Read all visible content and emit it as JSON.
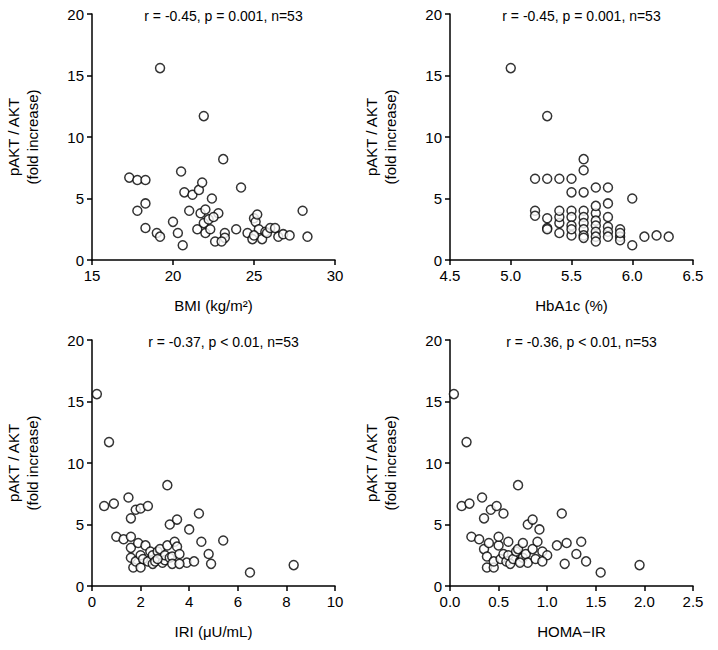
{
  "chart_data": [
    {
      "type": "scatter",
      "annotation": "r = -0.45, p = 0.001, n=53",
      "x_label": "BMI (kg/m²)",
      "y_label": "pAKT / AKT\n(fold increase)",
      "color": "#000000",
      "marker": "open_circle",
      "xlim": [
        15,
        30
      ],
      "xticks": [
        15,
        20,
        25,
        30
      ],
      "ylim": [
        0,
        20
      ],
      "yticks": [
        0,
        5,
        10,
        15,
        20
      ],
      "x": [
        17.3,
        17.8,
        18.3,
        17.8,
        18.3,
        18.3,
        19.2,
        19.0,
        19.2,
        20.0,
        20.3,
        20.5,
        20.6,
        20.7,
        21.0,
        21.2,
        21.5,
        21.6,
        21.8,
        21.9,
        21.7,
        21.9,
        22.0,
        22.0,
        22.2,
        22.3,
        22.6,
        22.8,
        22.4,
        22.5,
        23.1,
        23.2,
        23.2,
        23.0,
        23.9,
        24.2,
        24.6,
        24.9,
        25.0,
        25.1,
        25.2,
        25.3,
        25.5,
        25.7,
        25.8,
        26.0,
        26.3,
        26.5,
        26.8,
        27.2,
        28.0,
        28.3,
        25.0
      ],
      "values": [
        6.7,
        6.5,
        6.5,
        4.0,
        4.6,
        2.6,
        15.6,
        2.2,
        1.9,
        3.1,
        2.2,
        7.2,
        1.2,
        5.5,
        4.0,
        5.3,
        2.5,
        5.7,
        6.3,
        11.7,
        3.8,
        3.0,
        4.1,
        2.2,
        3.3,
        2.5,
        1.5,
        3.8,
        5.0,
        3.5,
        8.2,
        2.2,
        1.8,
        1.5,
        2.5,
        5.9,
        2.2,
        1.7,
        3.4,
        3.1,
        3.7,
        2.5,
        1.7,
        2.3,
        2.2,
        2.6,
        2.6,
        1.9,
        2.1,
        2.0,
        4.0,
        1.9,
        2.0
      ]
    },
    {
      "type": "scatter",
      "annotation": "r = -0.45, p = 0.001, n=53",
      "x_label": "HbA1c (%)",
      "y_label": "pAKT / AKT\n(fold increase)",
      "color": "#000000",
      "marker": "open_circle",
      "xlim": [
        4.5,
        6.5
      ],
      "xticks": [
        4.5,
        {
          "value": 5,
          "label": "5.0"
        },
        5.5,
        {
          "value": 6,
          "label": "6.0"
        },
        6.5
      ],
      "ylim": [
        0,
        20
      ],
      "yticks": [
        0,
        5,
        10,
        15,
        20
      ],
      "x": [
        5.0,
        5.3,
        5.2,
        5.3,
        5.4,
        5.5,
        5.2,
        5.2,
        5.3,
        5.3,
        5.4,
        5.4,
        5.4,
        5.5,
        5.5,
        5.5,
        5.5,
        5.5,
        5.6,
        5.6,
        5.6,
        5.6,
        5.6,
        5.6,
        5.6,
        5.6,
        5.6,
        5.7,
        5.7,
        5.7,
        5.7,
        5.7,
        5.7,
        5.7,
        5.8,
        5.8,
        5.8,
        5.8,
        5.8,
        5.8,
        5.9,
        5.9,
        5.9,
        6.0,
        6.0,
        6.1,
        6.2,
        6.3,
        5.4,
        5.3,
        5.5,
        5.7,
        5.9
      ],
      "values": [
        15.6,
        11.7,
        6.6,
        6.6,
        6.6,
        6.6,
        4.0,
        3.6,
        2.6,
        2.5,
        3.0,
        3.5,
        2.2,
        5.5,
        4.0,
        3.5,
        2.0,
        2.8,
        8.2,
        7.3,
        5.5,
        4.0,
        3.5,
        3.0,
        2.5,
        2.0,
        1.8,
        5.9,
        3.8,
        3.2,
        2.8,
        2.3,
        1.9,
        1.5,
        5.9,
        4.6,
        3.5,
        2.7,
        2.3,
        1.9,
        2.5,
        1.9,
        1.6,
        5.0,
        1.2,
        1.9,
        2.0,
        1.9,
        4.0,
        3.4,
        2.5,
        4.4,
        2.2
      ]
    },
    {
      "type": "scatter",
      "annotation": "r = -0.37, p < 0.01, n=53",
      "x_label": "IRI (μU/mL)",
      "y_label": "pAKT / AKT\n(fold increase)",
      "color": "#000000",
      "marker": "open_circle",
      "xlim": [
        0,
        10
      ],
      "xticks": [
        0,
        2,
        4,
        6,
        8,
        10
      ],
      "ylim": [
        0,
        20
      ],
      "yticks": [
        0,
        5,
        10,
        15,
        20
      ],
      "x": [
        0.2,
        0.7,
        0.5,
        0.9,
        1.0,
        1.3,
        1.5,
        1.6,
        1.6,
        1.6,
        1.6,
        1.7,
        1.8,
        1.8,
        1.9,
        2.0,
        2.0,
        2.0,
        2.1,
        2.2,
        2.3,
        2.3,
        2.4,
        2.5,
        2.5,
        2.6,
        2.7,
        2.8,
        2.9,
        3.0,
        3.0,
        3.1,
        3.1,
        3.2,
        3.2,
        3.3,
        3.3,
        3.4,
        3.5,
        3.5,
        3.6,
        3.9,
        4.0,
        4.2,
        4.4,
        4.5,
        4.8,
        4.9,
        5.4,
        6.5,
        8.3,
        2.7,
        3.6
      ],
      "values": [
        15.6,
        11.7,
        6.5,
        6.7,
        4.0,
        3.8,
        7.2,
        5.5,
        4.0,
        3.1,
        2.3,
        1.5,
        6.2,
        2.0,
        3.5,
        6.3,
        2.5,
        1.5,
        2.2,
        3.3,
        6.5,
        2.0,
        2.8,
        2.5,
        1.8,
        2.0,
        2.8,
        3.0,
        1.9,
        2.1,
        2.5,
        8.2,
        3.3,
        5.0,
        2.3,
        2.4,
        1.8,
        3.6,
        5.4,
        3.2,
        2.6,
        1.9,
        4.6,
        2.0,
        5.9,
        3.6,
        2.6,
        1.8,
        3.7,
        1.1,
        1.7,
        2.2,
        1.8
      ]
    },
    {
      "type": "scatter",
      "annotation": "r = -0.36, p < 0.01, n=53",
      "x_label": "HOMA−IR",
      "y_label": "pAKT / AKT\n(fold increase)",
      "color": "#000000",
      "marker": "open_circle",
      "xlim": [
        0,
        2.5
      ],
      "xticks": [
        {
          "value": 0,
          "label": "0.0"
        },
        0.5,
        {
          "value": 1,
          "label": "1.0"
        },
        1.5,
        {
          "value": 2,
          "label": "2.0"
        },
        2.5
      ],
      "ylim": [
        0,
        20
      ],
      "yticks": [
        0,
        5,
        10,
        15,
        20
      ],
      "x": [
        0.04,
        0.17,
        0.12,
        0.2,
        0.22,
        0.3,
        0.33,
        0.35,
        0.35,
        0.38,
        0.38,
        0.4,
        0.42,
        0.45,
        0.45,
        0.48,
        0.5,
        0.52,
        0.55,
        0.55,
        0.58,
        0.6,
        0.62,
        0.65,
        0.68,
        0.7,
        0.7,
        0.72,
        0.75,
        0.75,
        0.78,
        0.8,
        0.8,
        0.85,
        0.85,
        0.88,
        0.9,
        0.92,
        0.95,
        1.0,
        1.1,
        1.15,
        1.18,
        1.2,
        1.3,
        1.35,
        1.4,
        1.55,
        1.95,
        0.6,
        0.72,
        0.95,
        0.5
      ],
      "values": [
        15.6,
        11.7,
        6.5,
        6.7,
        4.0,
        3.8,
        7.2,
        5.5,
        3.0,
        2.4,
        1.5,
        3.5,
        6.2,
        1.5,
        2.0,
        6.5,
        3.3,
        2.2,
        2.6,
        5.9,
        2.0,
        2.5,
        1.8,
        2.2,
        2.8,
        8.2,
        3.0,
        2.0,
        2.3,
        3.5,
        2.6,
        1.9,
        5.0,
        5.4,
        3.0,
        2.2,
        3.6,
        4.6,
        2.8,
        2.5,
        3.3,
        5.9,
        1.8,
        3.5,
        2.6,
        3.6,
        2.0,
        1.1,
        1.7,
        3.6,
        1.9,
        2.0,
        4.0
      ]
    }
  ]
}
